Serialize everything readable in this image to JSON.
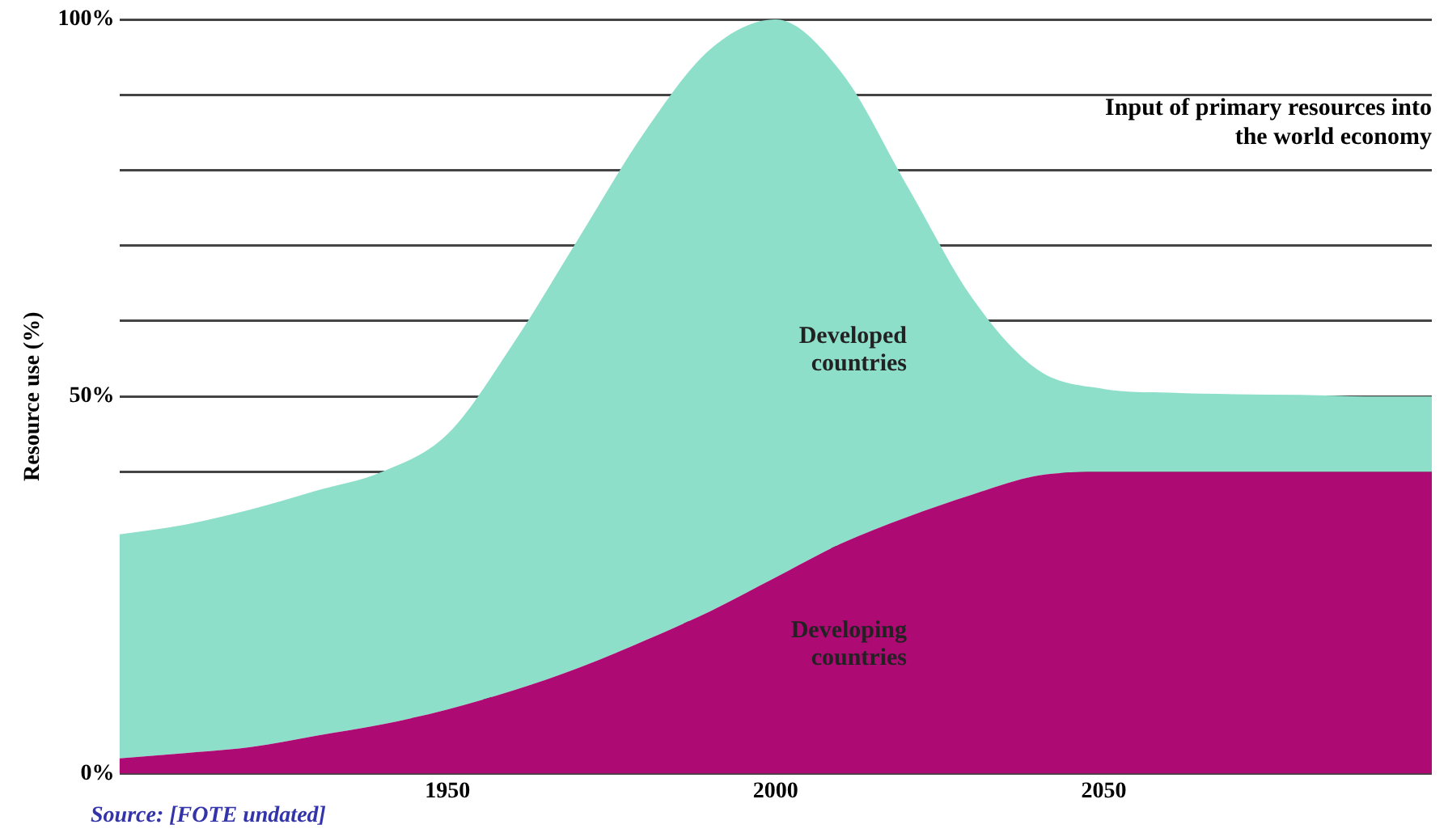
{
  "chart_data": {
    "type": "area",
    "title": "Input of primary resources into the world economy",
    "ylabel": "Resource use (%)",
    "annotations": [
      "Source: [FOTE undated]"
    ],
    "x": [
      1900,
      1910,
      1920,
      1930,
      1940,
      1950,
      1960,
      1970,
      1980,
      1990,
      2000,
      2010,
      2020,
      2030,
      2040,
      2050,
      2060,
      2070,
      2080,
      2090,
      2100
    ],
    "xlim": [
      1900,
      2100
    ],
    "xticks": [
      1950,
      2000,
      2050
    ],
    "ylim": [
      0,
      100
    ],
    "yticks": [
      {
        "value": 0,
        "label": "0%"
      },
      {
        "value": 10,
        "label": null
      },
      {
        "value": 20,
        "label": null
      },
      {
        "value": 30,
        "label": null
      },
      {
        "value": 40,
        "label": null
      },
      {
        "value": 50,
        "label": "50%"
      },
      {
        "value": 60,
        "label": null
      },
      {
        "value": 70,
        "label": null
      },
      {
        "value": 80,
        "label": null
      },
      {
        "value": 90,
        "label": null
      },
      {
        "value": 100,
        "label": "100%"
      }
    ],
    "stacked": true,
    "grid": "y",
    "legend": false,
    "marker": "none",
    "series": [
      {
        "name": "Developing countries",
        "color": "#ae0a74",
        "values": [
          2,
          2.7,
          3.5,
          5,
          6.5,
          8.5,
          11,
          14,
          17.6,
          21.5,
          26,
          30.5,
          34,
          37,
          39.5,
          40,
          40,
          40,
          40,
          40,
          40
        ]
      },
      {
        "name": "Developed countries",
        "color": "#8ddfca",
        "values": [
          29.7,
          30.3,
          31.5,
          32.5,
          33.5,
          36.5,
          46,
          57,
          67.4,
          74.5,
          74,
          62.5,
          44,
          26,
          14,
          11,
          10.5,
          10.3,
          10.2,
          10,
          10
        ]
      }
    ]
  }
}
